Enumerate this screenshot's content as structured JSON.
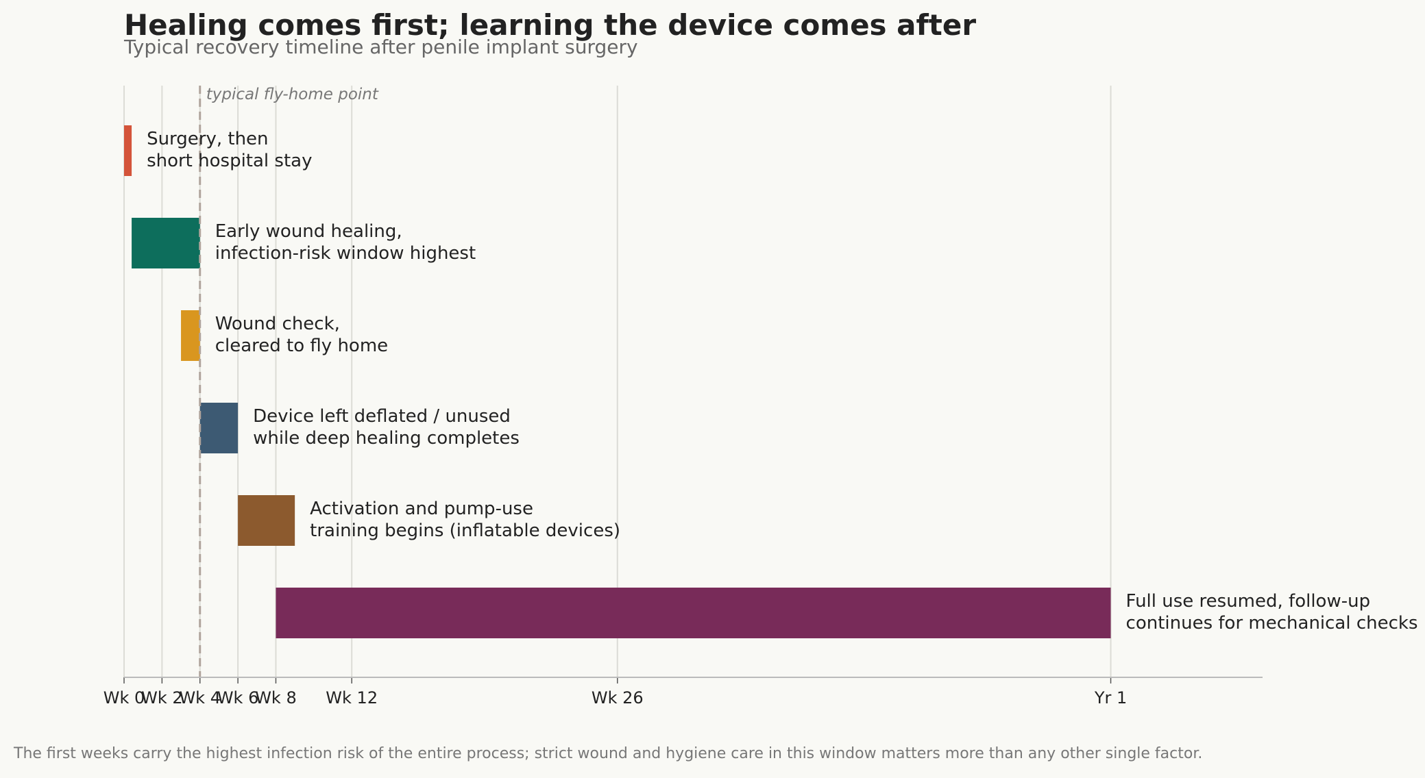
{
  "chart_data": {
    "type": "bar",
    "orientation": "horizontal-timeline",
    "title": "Healing comes first; learning the device comes after",
    "subtitle": "Typical recovery timeline after penile implant surgery",
    "footnote": "The first weeks carry the highest infection risk of the entire process; strict wound and hygiene care in this window matters more than any other single factor.",
    "x_unit": "weeks",
    "xlim": [
      0,
      60
    ],
    "grid": "vertical",
    "legend": "none",
    "ticks": [
      {
        "value": 0,
        "label": "Wk 0"
      },
      {
        "value": 2,
        "label": "Wk 2"
      },
      {
        "value": 4,
        "label": "Wk 4"
      },
      {
        "value": 6,
        "label": "Wk 6"
      },
      {
        "value": 8,
        "label": "Wk 8"
      },
      {
        "value": 12,
        "label": "Wk 12"
      },
      {
        "value": 26,
        "label": "Wk 26"
      },
      {
        "value": 52,
        "label": "Yr 1"
      }
    ],
    "reference_line": {
      "value": 4,
      "label": "typical fly-home point",
      "color": "#b0a49c"
    },
    "phases": [
      {
        "start": 0,
        "end": 0.4,
        "label": [
          "Surgery, then",
          "short hospital stay"
        ],
        "color": "#d4543a"
      },
      {
        "start": 0.4,
        "end": 4,
        "label": [
          "Early wound healing,",
          "infection-risk window highest"
        ],
        "color": "#0d6e5c"
      },
      {
        "start": 3,
        "end": 4,
        "label": [
          "Wound check,",
          "cleared to fly home"
        ],
        "color": "#d9961f"
      },
      {
        "start": 4,
        "end": 6,
        "label": [
          "Device left deflated / unused",
          "while deep healing completes"
        ],
        "color": "#3d5a73"
      },
      {
        "start": 6,
        "end": 9,
        "label": [
          "Activation and pump-use",
          "training begins (inflatable devices)"
        ],
        "color": "#8c5a2e"
      },
      {
        "start": 8,
        "end": 52,
        "label": [
          "Full use resumed, follow-up",
          "continues for mechanical checks"
        ],
        "color": "#782b59"
      }
    ]
  }
}
